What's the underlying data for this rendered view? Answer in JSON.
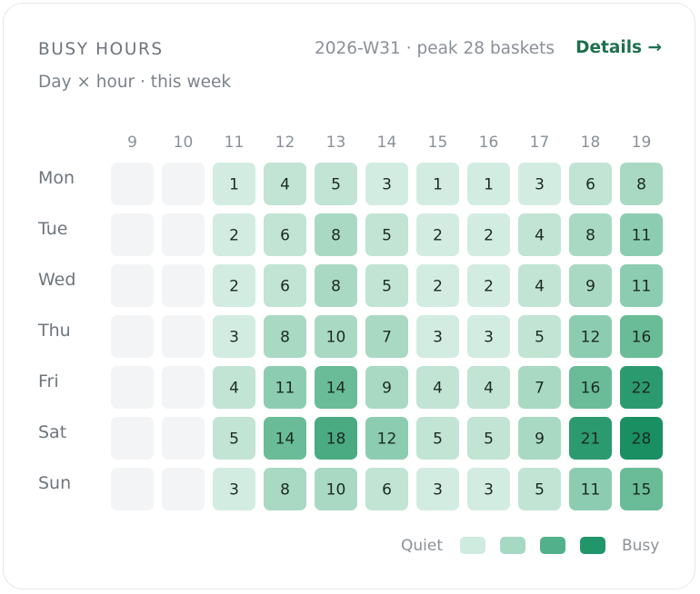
{
  "header": {
    "title": "BUSY HOURS",
    "meta": "2026-W31 · peak 28 baskets",
    "details_label": "Details →",
    "subtitle": "Day × hour · this week"
  },
  "chart_data": {
    "type": "heatmap",
    "x": [
      "9",
      "10",
      "11",
      "12",
      "13",
      "14",
      "15",
      "16",
      "17",
      "18",
      "19"
    ],
    "y": [
      "Mon",
      "Tue",
      "Wed",
      "Thu",
      "Fri",
      "Sat",
      "Sun"
    ],
    "values": [
      [
        null,
        null,
        1,
        4,
        5,
        3,
        1,
        1,
        3,
        6,
        8
      ],
      [
        null,
        null,
        2,
        6,
        8,
        5,
        2,
        2,
        4,
        8,
        11
      ],
      [
        null,
        null,
        2,
        6,
        8,
        5,
        2,
        2,
        4,
        9,
        11
      ],
      [
        null,
        null,
        3,
        8,
        10,
        7,
        3,
        3,
        5,
        12,
        16
      ],
      [
        null,
        null,
        4,
        11,
        14,
        9,
        4,
        4,
        7,
        16,
        22
      ],
      [
        null,
        null,
        5,
        14,
        18,
        12,
        5,
        5,
        9,
        21,
        28
      ],
      [
        null,
        null,
        3,
        8,
        10,
        6,
        3,
        3,
        5,
        11,
        15
      ]
    ],
    "max": 28,
    "legend": {
      "low_label": "Quiet",
      "high_label": "Busy",
      "colors": [
        "#cfeadf",
        "#a6d9c3",
        "#52b08b",
        "#22966b"
      ]
    },
    "colors": {
      "empty": "#f3f4f5",
      "cell_scale": [
        "#d3ece2",
        "#c1e4d4",
        "#a9d9c3",
        "#8ccdb1",
        "#69bc97",
        "#4aaa82",
        "#2c9a6f",
        "#1a8f62"
      ],
      "text_dark": "#1d2a24"
    }
  }
}
